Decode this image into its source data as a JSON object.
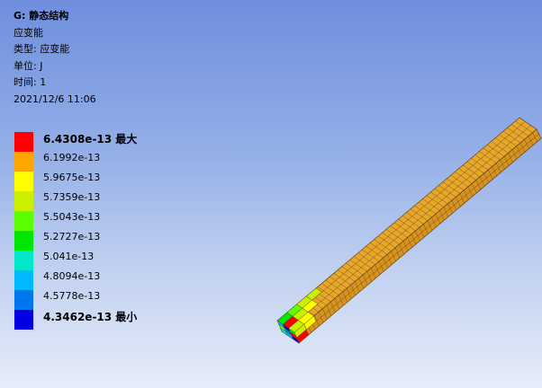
{
  "result": {
    "title": "G: 静态结构",
    "quantity": "应变能",
    "type_line": "类型: 应变能",
    "unit_line": "单位: J",
    "time_line": "时间: 1",
    "date_line": "2021/12/6 11:06"
  },
  "legend": {
    "max_label": "6.4308e-13 最大",
    "min_label": "4.3462e-13 最小",
    "levels": [
      "6.4308e-13 最大",
      "6.1992e-13",
      "5.9675e-13",
      "5.7359e-13",
      "5.5043e-13",
      "5.2727e-13",
      "5.041e-13",
      "4.8094e-13",
      "4.5778e-13",
      "4.3462e-13 最小"
    ],
    "colors": [
      "#ff0000",
      "#ffa500",
      "#ffff00",
      "#c8f000",
      "#5aff00",
      "#00e600",
      "#00e8c8",
      "#00b8ff",
      "#0075f0",
      "#0000e0"
    ]
  },
  "model": {
    "dominant_color": "#e0a028",
    "mesh_color": "#4a3a10"
  }
}
